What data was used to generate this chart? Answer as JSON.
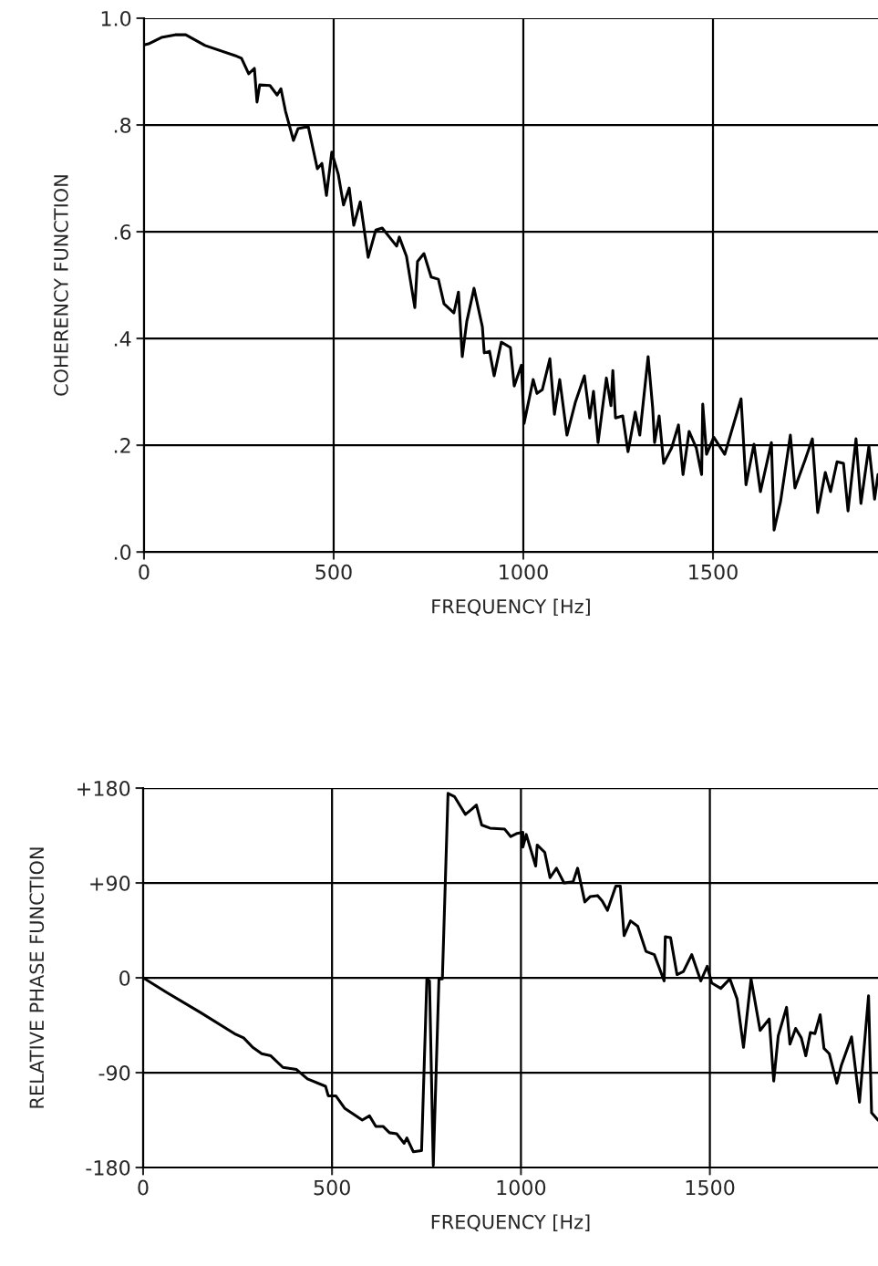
{
  "chart_data": [
    {
      "type": "line",
      "xlabel": "FREQUENCY [Hz]",
      "ylabel": "COHERENCY FUNCTION",
      "xlim": [
        0,
        1935
      ],
      "ylim": [
        0,
        1.0
      ],
      "xticks": [
        0,
        500,
        1000,
        1500
      ],
      "yticks": [
        {
          "value": 0,
          "label": ".0"
        },
        {
          "value": 0.2,
          "label": ".2"
        },
        {
          "value": 0.4,
          "label": ".4"
        },
        {
          "value": 0.6,
          "label": ".6"
        },
        {
          "value": 0.8,
          "label": ".8"
        },
        {
          "value": 1.0,
          "label": "1.0"
        }
      ],
      "grid": true,
      "line_style": "solid",
      "marker": "none",
      "series": [
        {
          "color": "#000000",
          "x": [
            0,
            12,
            46,
            82,
            110,
            161,
            240,
            257,
            276,
            291,
            298,
            305,
            332,
            351,
            361,
            373,
            394,
            406,
            433,
            457,
            469,
            481,
            495,
            512,
            526,
            541,
            553,
            570,
            591,
            611,
            628,
            666,
            673,
            692,
            714,
            721,
            738,
            757,
            776,
            791,
            817,
            829,
            839,
            851,
            870,
            892,
            897,
            911,
            923,
            942,
            966,
            976,
            995,
            1002,
            1026,
            1036,
            1050,
            1070,
            1082,
            1096,
            1115,
            1137,
            1161,
            1175,
            1185,
            1197,
            1219,
            1231,
            1236,
            1243,
            1262,
            1276,
            1295,
            1307,
            1329,
            1341,
            1346,
            1358,
            1370,
            1391,
            1409,
            1421,
            1437,
            1456,
            1470,
            1473,
            1483,
            1502,
            1531,
            1574,
            1587,
            1608,
            1625,
            1654,
            1661,
            1678,
            1704,
            1716,
            1743,
            1762,
            1776,
            1796,
            1810,
            1827,
            1844,
            1856,
            1877,
            1890,
            1911,
            1926,
            1935
          ],
          "values": [
            0.95,
            0.952,
            0.964,
            0.969,
            0.969,
            0.949,
            0.93,
            0.925,
            0.896,
            0.906,
            0.843,
            0.875,
            0.874,
            0.856,
            0.868,
            0.826,
            0.771,
            0.793,
            0.797,
            0.718,
            0.728,
            0.668,
            0.749,
            0.708,
            0.65,
            0.682,
            0.612,
            0.656,
            0.552,
            0.603,
            0.607,
            0.573,
            0.59,
            0.554,
            0.458,
            0.544,
            0.559,
            0.515,
            0.511,
            0.465,
            0.448,
            0.487,
            0.366,
            0.432,
            0.494,
            0.422,
            0.373,
            0.376,
            0.33,
            0.393,
            0.383,
            0.311,
            0.35,
            0.241,
            0.323,
            0.297,
            0.304,
            0.362,
            0.258,
            0.323,
            0.219,
            0.28,
            0.33,
            0.251,
            0.301,
            0.205,
            0.326,
            0.274,
            0.34,
            0.251,
            0.255,
            0.188,
            0.262,
            0.219,
            0.366,
            0.27,
            0.205,
            0.255,
            0.166,
            0.195,
            0.238,
            0.145,
            0.226,
            0.195,
            0.145,
            0.277,
            0.183,
            0.215,
            0.183,
            0.287,
            0.126,
            0.202,
            0.113,
            0.205,
            0.041,
            0.094,
            0.219,
            0.12,
            0.173,
            0.212,
            0.074,
            0.149,
            0.113,
            0.169,
            0.166,
            0.077,
            0.212,
            0.091,
            0.198,
            0.099,
            0.145
          ]
        }
      ]
    },
    {
      "type": "line",
      "xlabel": "FREQUENCY [Hz]",
      "ylabel": "RELATIVE PHASE FUNCTION",
      "xlim": [
        0,
        1945
      ],
      "ylim": [
        -180,
        180
      ],
      "xticks": [
        0,
        500,
        1000,
        1500
      ],
      "yticks": [
        {
          "value": -180,
          "label": "-180"
        },
        {
          "value": -90,
          "label": "-90"
        },
        0,
        {
          "value": 90,
          "label": "+90"
        },
        {
          "value": 180,
          "label": "+180"
        }
      ],
      "grid": true,
      "line_style": "solid",
      "marker": "none",
      "series": [
        {
          "color": "#000000",
          "x": [
            0,
            63,
            152,
            242,
            266,
            290,
            314,
            338,
            370,
            406,
            435,
            483,
            490,
            510,
            534,
            580,
            599,
            616,
            635,
            652,
            671,
            691,
            698,
            715,
            737,
            751,
            758,
            768,
            783,
            792,
            807,
            824,
            853,
            870,
            882,
            896,
            918,
            957,
            973,
            990,
            1005,
            1005,
            1014,
            1039,
            1043,
            1063,
            1077,
            1094,
            1114,
            1138,
            1150,
            1169,
            1183,
            1203,
            1215,
            1229,
            1251,
            1263,
            1273,
            1290,
            1309,
            1331,
            1353,
            1379,
            1382,
            1396,
            1413,
            1430,
            1452,
            1476,
            1493,
            1505,
            1529,
            1553,
            1572,
            1589,
            1609,
            1633,
            1657,
            1669,
            1681,
            1703,
            1712,
            1727,
            1742,
            1754,
            1766,
            1778,
            1792,
            1802,
            1816,
            1836,
            1848,
            1875,
            1896,
            1920,
            1928,
            1945
          ],
          "values": [
            0,
            -14,
            -33,
            -53,
            -57,
            -66,
            -72,
            -74,
            -85,
            -87,
            -96,
            -103,
            -112,
            -112,
            -124,
            -135,
            -131,
            -141,
            -141,
            -147,
            -148,
            -157,
            -152,
            -165,
            -164,
            -1,
            -3,
            -178,
            -1,
            -1,
            175,
            172,
            155,
            160,
            164,
            145,
            142,
            141,
            134,
            137,
            138,
            124,
            136,
            106,
            126,
            119,
            95,
            104,
            90,
            91,
            104,
            72,
            77,
            78,
            73,
            64,
            87,
            87,
            40,
            54,
            49,
            25,
            22,
            -3,
            39,
            38,
            3,
            6,
            22,
            -3,
            11,
            -5,
            -10,
            -1,
            -20,
            -66,
            -1,
            -50,
            -39,
            -98,
            -55,
            -28,
            -63,
            -48,
            -57,
            -74,
            -52,
            -53,
            -35,
            -67,
            -72,
            -100,
            -83,
            -56,
            -118,
            -17,
            -128,
            -135
          ]
        }
      ]
    }
  ]
}
